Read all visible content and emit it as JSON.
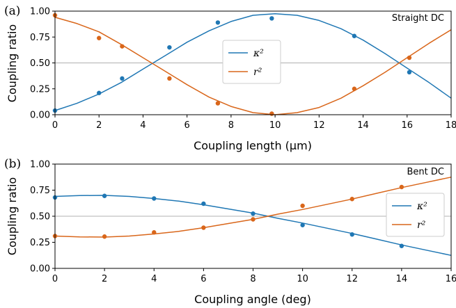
{
  "colors": {
    "kappa": "#1f77b4",
    "r": "#d9661a",
    "refline": "#b0b0b0"
  },
  "chart_data": [
    {
      "type": "line",
      "panel_label": "(a)",
      "corner_label": "Straight DC",
      "xlabel": "Coupling length (μm)",
      "ylabel": "Coupling ratio",
      "xlim": [
        0,
        18
      ],
      "ylim": [
        0,
        1.0
      ],
      "xticks": [
        0,
        2,
        4,
        6,
        8,
        10,
        12,
        14,
        16,
        18
      ],
      "xtick_labels": [
        "0",
        "2",
        "4",
        "6",
        "8",
        "10",
        "12",
        "14",
        "16",
        "18"
      ],
      "yticks": [
        0,
        0.25,
        0.5,
        0.75,
        1.0
      ],
      "ytick_labels": [
        "0.00",
        "0.25",
        "0.50",
        "0.75",
        "1.00"
      ],
      "reference_line": 0.5,
      "legend_position": "center",
      "series": [
        {
          "name": "κ²",
          "color_key": "kappa",
          "points": [
            [
              0,
              0.04
            ],
            [
              2,
              0.21
            ],
            [
              3.05,
              0.35
            ],
            [
              5.2,
              0.65
            ],
            [
              7.4,
              0.89
            ],
            [
              9.85,
              0.93
            ],
            [
              13.6,
              0.76
            ],
            [
              16.1,
              0.41
            ]
          ],
          "fit": [
            [
              0,
              0.04
            ],
            [
              1,
              0.11
            ],
            [
              2,
              0.2
            ],
            [
              3,
              0.31
            ],
            [
              4,
              0.44
            ],
            [
              5,
              0.57
            ],
            [
              6,
              0.7
            ],
            [
              7,
              0.81
            ],
            [
              8,
              0.9
            ],
            [
              9,
              0.96
            ],
            [
              10,
              0.975
            ],
            [
              11,
              0.96
            ],
            [
              12,
              0.91
            ],
            [
              13,
              0.83
            ],
            [
              14,
              0.72
            ],
            [
              15,
              0.59
            ],
            [
              16,
              0.45
            ],
            [
              17,
              0.31
            ],
            [
              18,
              0.16
            ]
          ]
        },
        {
          "name": "r²",
          "color_key": "r",
          "points": [
            [
              0,
              0.96
            ],
            [
              2,
              0.74
            ],
            [
              3.05,
              0.66
            ],
            [
              5.2,
              0.35
            ],
            [
              7.4,
              0.11
            ],
            [
              9.85,
              0.01
            ],
            [
              13.6,
              0.25
            ],
            [
              16.1,
              0.55
            ]
          ],
          "fit": [
            [
              0,
              0.94
            ],
            [
              1,
              0.88
            ],
            [
              2,
              0.8
            ],
            [
              3,
              0.68
            ],
            [
              4,
              0.55
            ],
            [
              5,
              0.42
            ],
            [
              6,
              0.29
            ],
            [
              7,
              0.17
            ],
            [
              8,
              0.08
            ],
            [
              9,
              0.02
            ],
            [
              10,
              0.0
            ],
            [
              11,
              0.02
            ],
            [
              12,
              0.07
            ],
            [
              13,
              0.16
            ],
            [
              14,
              0.28
            ],
            [
              15,
              0.41
            ],
            [
              16,
              0.55
            ],
            [
              17,
              0.69
            ],
            [
              18,
              0.82
            ]
          ]
        }
      ]
    },
    {
      "type": "line",
      "panel_label": "(b)",
      "corner_label": "Bent DC",
      "xlabel": "Coupling angle (deg)",
      "ylabel": "Coupling ratio",
      "xlim": [
        0,
        16
      ],
      "ylim": [
        0,
        1.0
      ],
      "xticks": [
        0,
        2,
        4,
        6,
        8,
        10,
        12,
        14,
        16
      ],
      "xtick_labels": [
        "0",
        "2",
        "4",
        "6",
        "8",
        "10",
        "12",
        "14",
        "16"
      ],
      "yticks": [
        0,
        0.25,
        0.5,
        0.75,
        1.0
      ],
      "ytick_labels": [
        "0.00",
        "0.25",
        "0.50",
        "0.75",
        "1.00"
      ],
      "reference_line": 0.5,
      "legend_position": "right",
      "series": [
        {
          "name": "κ²",
          "color_key": "kappa",
          "points": [
            [
              0,
              0.68
            ],
            [
              2,
              0.695
            ],
            [
              4,
              0.67
            ],
            [
              6,
              0.62
            ],
            [
              8,
              0.525
            ],
            [
              10,
              0.415
            ],
            [
              12,
              0.325
            ],
            [
              14,
              0.215
            ]
          ],
          "fit": [
            [
              0,
              0.69
            ],
            [
              1,
              0.698
            ],
            [
              2,
              0.7
            ],
            [
              3,
              0.69
            ],
            [
              4,
              0.67
            ],
            [
              5,
              0.645
            ],
            [
              6,
              0.61
            ],
            [
              7,
              0.57
            ],
            [
              8,
              0.53
            ],
            [
              9,
              0.48
            ],
            [
              10,
              0.435
            ],
            [
              11,
              0.385
            ],
            [
              12,
              0.335
            ],
            [
              13,
              0.28
            ],
            [
              14,
              0.225
            ],
            [
              15,
              0.175
            ],
            [
              16,
              0.125
            ]
          ]
        },
        {
          "name": "r²",
          "color_key": "r",
          "points": [
            [
              0,
              0.31
            ],
            [
              2,
              0.305
            ],
            [
              4,
              0.345
            ],
            [
              6,
              0.39
            ],
            [
              8,
              0.47
            ],
            [
              10,
              0.6
            ],
            [
              12,
              0.665
            ],
            [
              14,
              0.78
            ]
          ],
          "fit": [
            [
              0,
              0.31
            ],
            [
              1,
              0.302
            ],
            [
              2,
              0.3
            ],
            [
              3,
              0.31
            ],
            [
              4,
              0.33
            ],
            [
              5,
              0.355
            ],
            [
              6,
              0.39
            ],
            [
              7,
              0.43
            ],
            [
              8,
              0.47
            ],
            [
              9,
              0.52
            ],
            [
              10,
              0.565
            ],
            [
              11,
              0.615
            ],
            [
              12,
              0.665
            ],
            [
              13,
              0.72
            ],
            [
              14,
              0.775
            ],
            [
              15,
              0.825
            ],
            [
              16,
              0.875
            ]
          ]
        }
      ]
    }
  ]
}
